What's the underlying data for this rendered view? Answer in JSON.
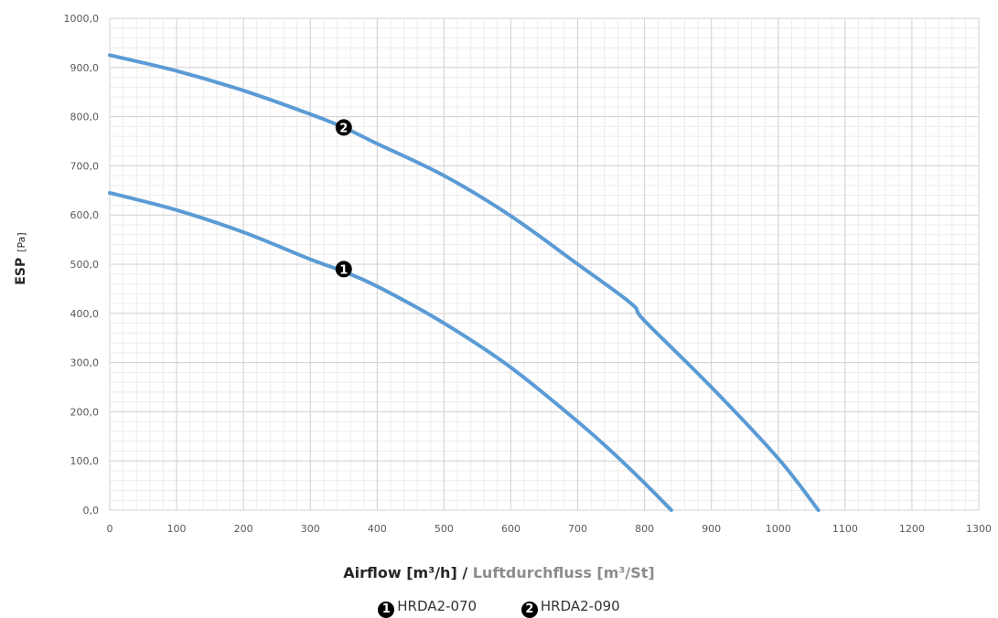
{
  "chart_data": {
    "type": "line",
    "ylabel": "ESP",
    "ylabel_unit": "[Pa]",
    "xlabel": "Airflow [m³/h]",
    "xlabel_sep": " / ",
    "xlabel_de": "Luftdurchfluss [m³/St]",
    "xlim": [
      0,
      1300
    ],
    "ylim": [
      0,
      1000
    ],
    "x_ticks": [
      "0",
      "100",
      "200",
      "300",
      "400",
      "500",
      "600",
      "700",
      "800",
      "900",
      "1000",
      "1100",
      "1200",
      "1300"
    ],
    "y_ticks": [
      "0,0",
      "100,0",
      "200,0",
      "300,0",
      "400,0",
      "500,0",
      "600,0",
      "700,0",
      "800,0",
      "900,0",
      "1000,0"
    ],
    "grid": true,
    "minor_grid": true,
    "legend_position": "bottom-center",
    "series": [
      {
        "name": "HRDA2-070",
        "marker": "1",
        "marker_x": 350,
        "marker_y": 490,
        "color": "#5b9bd5",
        "x": [
          0,
          100,
          200,
          300,
          350,
          400,
          500,
          600,
          700,
          750,
          800,
          840
        ],
        "y": [
          645,
          610,
          565,
          510,
          485,
          455,
          380,
          290,
          180,
          120,
          55,
          0
        ]
      },
      {
        "name": "HRDA2-090",
        "marker": "2",
        "marker_x": 350,
        "marker_y": 778,
        "color": "#5b9bd5",
        "x": [
          0,
          100,
          200,
          300,
          350,
          400,
          500,
          600,
          700,
          780,
          800,
          900,
          1000,
          1060
        ],
        "y": [
          925,
          893,
          853,
          805,
          778,
          745,
          680,
          598,
          500,
          420,
          385,
          250,
          105,
          0
        ]
      }
    ]
  }
}
